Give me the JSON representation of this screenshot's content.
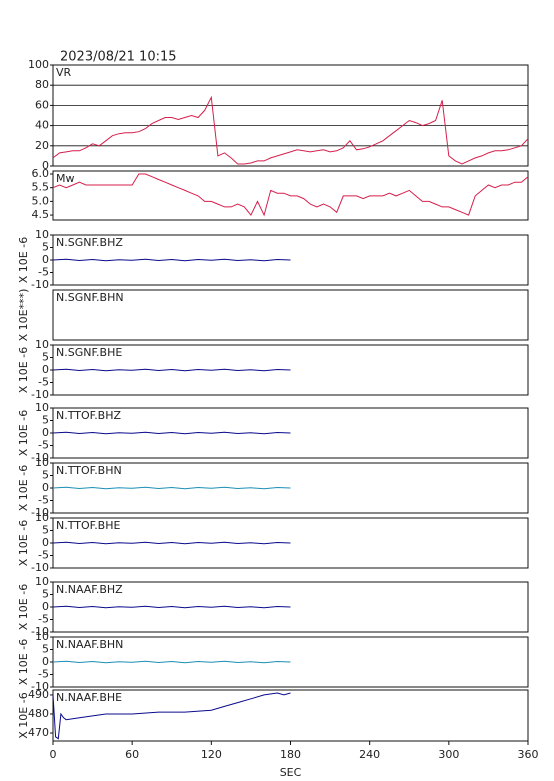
{
  "chart_data": [
    {
      "type": "line",
      "title": "2023/08/21 10:15",
      "label": "VR",
      "color": "#d61f4d",
      "grid": true,
      "xlim": [
        0,
        360
      ],
      "ylim": [
        0,
        100
      ],
      "yticks": [
        0,
        20,
        40,
        60,
        80,
        100
      ],
      "x": [
        0,
        5,
        10,
        15,
        20,
        25,
        30,
        35,
        40,
        45,
        50,
        55,
        60,
        65,
        70,
        75,
        80,
        85,
        90,
        95,
        100,
        105,
        110,
        115,
        120,
        125,
        130,
        135,
        140,
        145,
        150,
        155,
        160,
        165,
        170,
        175,
        180,
        185,
        190,
        195,
        200,
        205,
        210,
        215,
        220,
        225,
        230,
        235,
        240,
        245,
        250,
        255,
        260,
        265,
        270,
        275,
        280,
        285,
        290,
        295,
        300,
        305,
        310,
        315,
        320,
        325,
        330,
        335,
        340,
        345,
        350,
        355,
        360
      ],
      "values": [
        8,
        13,
        14,
        15,
        15,
        18,
        22,
        20,
        25,
        30,
        32,
        33,
        33,
        34,
        37,
        42,
        45,
        48,
        48,
        46,
        48,
        50,
        48,
        55,
        68,
        10,
        13,
        8,
        2,
        2,
        3,
        5,
        5,
        8,
        10,
        12,
        14,
        16,
        15,
        14,
        15,
        16,
        14,
        15,
        18,
        25,
        16,
        17,
        19,
        22,
        25,
        30,
        35,
        40,
        45,
        43,
        40,
        42,
        45,
        65,
        10,
        5,
        2,
        5,
        8,
        10,
        13,
        15,
        15,
        16,
        18,
        20,
        27
      ]
    },
    {
      "type": "line",
      "label": "Mw",
      "color": "#d61f4d",
      "xlim": [
        0,
        360
      ],
      "ylim": [
        4.32,
        6.11
      ],
      "yticks": [
        4.5,
        {
          "value": 5,
          "label": "5.0"
        },
        5.5,
        {
          "value": 6,
          "label": "6.0"
        }
      ],
      "x": [
        0,
        5,
        10,
        15,
        20,
        25,
        30,
        35,
        40,
        45,
        50,
        55,
        60,
        65,
        70,
        75,
        80,
        85,
        90,
        95,
        100,
        105,
        110,
        115,
        120,
        125,
        130,
        135,
        140,
        145,
        150,
        155,
        160,
        165,
        170,
        175,
        180,
        185,
        190,
        195,
        200,
        205,
        210,
        215,
        220,
        225,
        230,
        235,
        240,
        245,
        250,
        255,
        260,
        265,
        270,
        275,
        280,
        285,
        290,
        295,
        300,
        305,
        310,
        315,
        320,
        325,
        330,
        335,
        340,
        345,
        350,
        355,
        360
      ],
      "values": [
        5.5,
        5.6,
        5.5,
        5.6,
        5.7,
        5.6,
        5.6,
        5.6,
        5.6,
        5.6,
        5.6,
        5.6,
        5.6,
        6.0,
        6.0,
        5.9,
        5.8,
        5.7,
        5.6,
        5.5,
        5.4,
        5.3,
        5.2,
        5.0,
        5.0,
        4.9,
        4.8,
        4.8,
        4.9,
        4.8,
        4.5,
        5.0,
        4.5,
        5.4,
        5.3,
        5.3,
        5.2,
        5.2,
        5.1,
        4.9,
        4.8,
        4.9,
        4.8,
        4.6,
        5.2,
        5.2,
        5.2,
        5.1,
        5.2,
        5.2,
        5.2,
        5.3,
        5.2,
        5.3,
        5.4,
        5.2,
        5.0,
        5.0,
        4.9,
        4.8,
        4.8,
        4.7,
        4.6,
        4.5,
        5.2,
        5.4,
        5.6,
        5.5,
        5.6,
        5.6,
        5.7,
        5.7,
        5.9
      ]
    },
    {
      "type": "line",
      "label": "N.SGNF.BHZ",
      "ylabel": "X 10E -6",
      "color": "#0a0a8c",
      "xlim": [
        0,
        360
      ],
      "ylim": [
        -10,
        10
      ],
      "yticks": [
        -10,
        -5,
        0,
        5,
        10
      ],
      "x": [
        0,
        10,
        20,
        30,
        40,
        50,
        60,
        70,
        80,
        90,
        100,
        110,
        120,
        130,
        140,
        150,
        160,
        170,
        180
      ],
      "values": [
        0,
        0.3,
        -0.2,
        0.2,
        -0.3,
        0.1,
        -0.1,
        0.3,
        -0.2,
        0.2,
        -0.3,
        0.2,
        -0.1,
        0.3,
        -0.2,
        0.1,
        -0.3,
        0.2,
        0
      ]
    },
    {
      "type": "line",
      "label": "N.SGNF.BHN",
      "ylabel": "X 10E***)",
      "xlim": [
        0,
        360
      ]
    },
    {
      "type": "line",
      "label": "N.SGNF.BHE",
      "ylabel": "X 10E -6",
      "color": "#0a0a8c",
      "xlim": [
        0,
        360
      ],
      "ylim": [
        -10,
        10
      ],
      "yticks": [
        -10,
        -5,
        0,
        5,
        10
      ],
      "x": [
        0,
        10,
        20,
        30,
        40,
        50,
        60,
        70,
        80,
        90,
        100,
        110,
        120,
        130,
        140,
        150,
        160,
        170,
        180
      ],
      "values": [
        0,
        0.3,
        -0.2,
        0.2,
        -0.3,
        0.1,
        -0.1,
        0.3,
        -0.2,
        0.2,
        -0.3,
        0.2,
        -0.1,
        0.3,
        -0.2,
        0.1,
        -0.3,
        0.2,
        0
      ]
    },
    {
      "type": "line",
      "label": "N.TTOF.BHZ",
      "ylabel": "X 10E -6",
      "color": "#0a0a8c",
      "xlim": [
        0,
        360
      ],
      "ylim": [
        -10,
        10
      ],
      "yticks": [
        -10,
        -5,
        0,
        5,
        10
      ],
      "x": [
        0,
        10,
        20,
        30,
        40,
        50,
        60,
        70,
        80,
        90,
        100,
        110,
        120,
        130,
        140,
        150,
        160,
        170,
        180
      ],
      "values": [
        0,
        0.3,
        -0.2,
        0.2,
        -0.3,
        0.1,
        -0.1,
        0.3,
        -0.2,
        0.2,
        -0.3,
        0.2,
        -0.1,
        0.3,
        -0.2,
        0.1,
        -0.3,
        0.2,
        0
      ]
    },
    {
      "type": "line",
      "label": "N.TTOF.BHN",
      "ylabel": "X 10E -6",
      "color": "#1c8fb5",
      "xlim": [
        0,
        360
      ],
      "ylim": [
        -10,
        10
      ],
      "yticks": [
        -10,
        -5,
        0,
        5,
        10
      ],
      "x": [
        0,
        10,
        20,
        30,
        40,
        50,
        60,
        70,
        80,
        90,
        100,
        110,
        120,
        130,
        140,
        150,
        160,
        170,
        180
      ],
      "values": [
        0,
        0.3,
        -0.2,
        0.2,
        -0.3,
        0.1,
        -0.1,
        0.3,
        -0.2,
        0.2,
        -0.3,
        0.2,
        -0.1,
        0.3,
        -0.2,
        0.1,
        -0.3,
        0.2,
        0
      ]
    },
    {
      "type": "line",
      "label": "N.TTOF.BHE",
      "ylabel": "X 10E -6",
      "color": "#0a0a8c",
      "xlim": [
        0,
        360
      ],
      "ylim": [
        -10,
        10
      ],
      "yticks": [
        -10,
        -5,
        0,
        5,
        10
      ],
      "x": [
        0,
        10,
        20,
        30,
        40,
        50,
        60,
        70,
        80,
        90,
        100,
        110,
        120,
        130,
        140,
        150,
        160,
        170,
        180
      ],
      "values": [
        0,
        0.3,
        -0.2,
        0.2,
        -0.3,
        0.1,
        -0.1,
        0.3,
        -0.2,
        0.2,
        -0.3,
        0.2,
        -0.1,
        0.3,
        -0.2,
        0.1,
        -0.3,
        0.2,
        0
      ]
    },
    {
      "type": "line",
      "label": "N.NAAF.BHZ",
      "ylabel": "X 10E -6",
      "color": "#0a0a8c",
      "xlim": [
        0,
        360
      ],
      "ylim": [
        -10,
        10
      ],
      "yticks": [
        -10,
        -5,
        0,
        5,
        10
      ],
      "x": [
        0,
        10,
        20,
        30,
        40,
        50,
        60,
        70,
        80,
        90,
        100,
        110,
        120,
        130,
        140,
        150,
        160,
        170,
        180
      ],
      "values": [
        0,
        0.3,
        -0.2,
        0.2,
        -0.3,
        0.1,
        -0.1,
        0.3,
        -0.2,
        0.2,
        -0.3,
        0.2,
        -0.1,
        0.3,
        -0.2,
        0.1,
        -0.3,
        0.2,
        0
      ]
    },
    {
      "type": "line",
      "label": "N.NAAF.BHN",
      "ylabel": "X 10E -6",
      "color": "#1c8fb5",
      "xlim": [
        0,
        360
      ],
      "ylim": [
        -10,
        10
      ],
      "yticks": [
        -10,
        -5,
        0,
        5,
        10
      ],
      "x": [
        0,
        10,
        20,
        30,
        40,
        50,
        60,
        70,
        80,
        90,
        100,
        110,
        120,
        130,
        140,
        150,
        160,
        170,
        180
      ],
      "values": [
        0,
        0.3,
        -0.2,
        0.2,
        -0.3,
        0.1,
        -0.1,
        0.3,
        -0.2,
        0.2,
        -0.3,
        0.2,
        -0.1,
        0.3,
        -0.2,
        0.1,
        -0.3,
        0.2,
        0
      ]
    },
    {
      "type": "line",
      "label": "N.NAAF.BHE",
      "ylabel": "X 10E -6",
      "color": "#0a0a8c",
      "xlim": [
        0,
        360
      ],
      "ylim": [
        465.8,
        492.6
      ],
      "yticks": [
        470,
        480,
        490
      ],
      "xticks": [
        0,
        60,
        120,
        180,
        240,
        300,
        360
      ],
      "xlabel": "SEC",
      "x": [
        0,
        2,
        4,
        6,
        8,
        10,
        20,
        30,
        40,
        60,
        80,
        100,
        120,
        130,
        140,
        150,
        160,
        170,
        175,
        180
      ],
      "values": [
        490,
        468,
        467,
        480,
        478,
        477,
        478,
        479,
        480,
        480,
        481,
        481,
        482,
        484,
        486,
        488,
        490,
        491,
        490,
        491
      ]
    }
  ]
}
